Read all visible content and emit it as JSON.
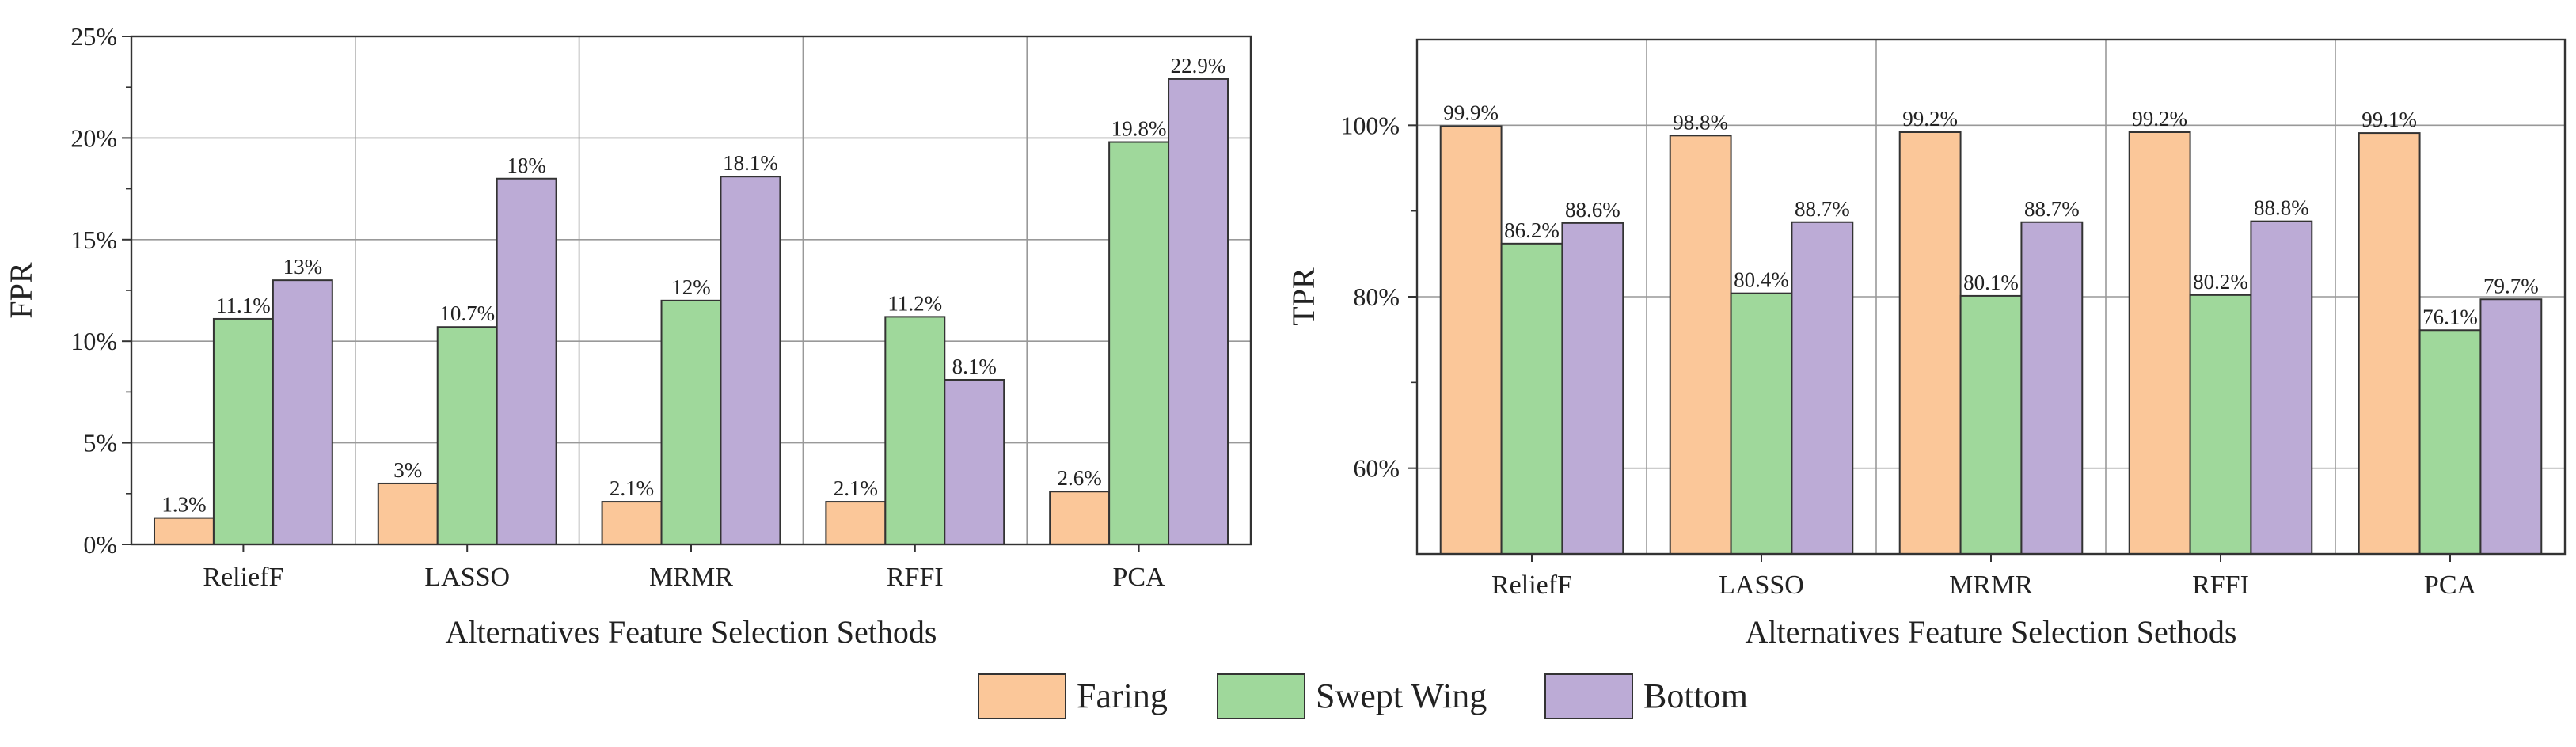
{
  "colors": {
    "Faring": "#fbc799",
    "Swept Wing": "#9fd89b",
    "Bottom": "#bcabd6",
    "grid": "#999999",
    "axis": "#333333",
    "text": "#222222"
  },
  "legend": {
    "items": [
      "Faring",
      "Swept Wing",
      "Bottom"
    ]
  },
  "chart_data": [
    {
      "type": "bar",
      "ylabel": "FPR",
      "xlabel": "Alternatives Feature Selection Sethods",
      "ylim": [
        0,
        25
      ],
      "yticks": [
        0,
        5,
        10,
        15,
        20,
        25
      ],
      "ytick_labels": [
        "0%",
        "5%",
        "10%",
        "15%",
        "20%",
        "25%"
      ],
      "categories": [
        "ReliefF",
        "LASSO",
        "MRMR",
        "RFFI",
        "PCA"
      ],
      "series": [
        {
          "name": "Faring",
          "values": [
            1.3,
            3,
            2.1,
            2.1,
            2.6
          ],
          "labels": [
            "1.3%",
            "3%",
            "2.1%",
            "2.1%",
            "2.6%"
          ]
        },
        {
          "name": "Swept Wing",
          "values": [
            11.1,
            10.7,
            12,
            11.2,
            19.8
          ],
          "labels": [
            "11.1%",
            "10.7%",
            "12%",
            "11.2%",
            "19.8%"
          ]
        },
        {
          "name": "Bottom",
          "values": [
            13,
            18,
            18.1,
            8.1,
            22.9
          ],
          "labels": [
            "13%",
            "18%",
            "18.1%",
            "8.1%",
            "22.9%"
          ]
        }
      ],
      "grid": true
    },
    {
      "type": "bar",
      "ylabel": "TPR",
      "xlabel": "Alternatives Feature Selection Sethods",
      "ylim": [
        50,
        110
      ],
      "yticks": [
        60,
        80,
        100
      ],
      "ytick_labels": [
        "60%",
        "80%",
        "100%"
      ],
      "categories": [
        "ReliefF",
        "LASSO",
        "MRMR",
        "RFFI",
        "PCA"
      ],
      "series": [
        {
          "name": "Faring",
          "values": [
            99.9,
            98.8,
            99.2,
            99.2,
            99.1
          ],
          "labels": [
            "99.9%",
            "98.8%",
            "99.2%",
            "99.2%",
            "99.1%"
          ]
        },
        {
          "name": "Swept Wing",
          "values": [
            86.2,
            80.4,
            80.1,
            80.2,
            76.1
          ],
          "labels": [
            "86.2%",
            "80.4%",
            "80.1%",
            "80.2%",
            "76.1%"
          ]
        },
        {
          "name": "Bottom",
          "values": [
            88.6,
            88.7,
            88.7,
            88.8,
            79.7
          ],
          "labels": [
            "88.6%",
            "88.7%",
            "88.7%",
            "88.8%",
            "79.7%"
          ]
        }
      ],
      "grid": true
    }
  ]
}
